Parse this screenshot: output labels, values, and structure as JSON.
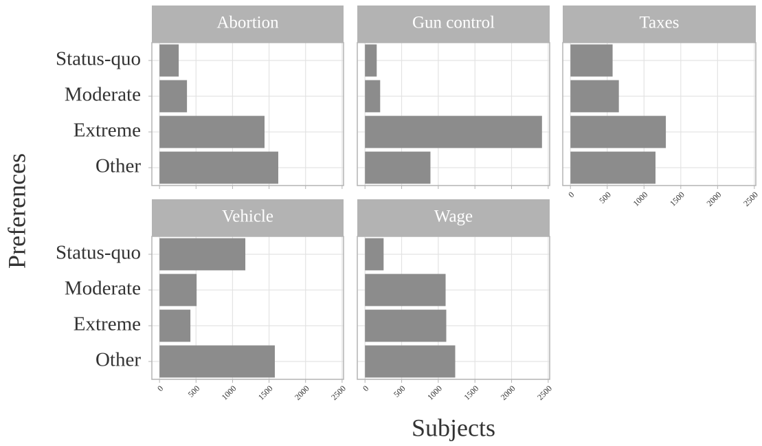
{
  "x_label": "Subjects",
  "y_label": "Preferences",
  "chart_data": [
    {
      "type": "bar",
      "orientation": "horizontal",
      "title": "Abortion",
      "categories": [
        "Status-quo",
        "Moderate",
        "Extreme",
        "Other"
      ],
      "values": [
        263,
        376,
        1438,
        1626
      ],
      "color": "#8c8c8c",
      "xlim": [
        -105,
        2520
      ],
      "xticks": [
        0,
        500,
        1000,
        1500,
        2000,
        2500
      ],
      "grid": true
    },
    {
      "type": "bar",
      "orientation": "horizontal",
      "title": "Gun control",
      "categories": [
        "Status-quo",
        "Moderate",
        "Extreme",
        "Other"
      ],
      "values": [
        160,
        207,
        2415,
        893
      ],
      "color": "#8c8c8c",
      "xlim": [
        -105,
        2520
      ],
      "xticks": [
        0,
        500,
        1000,
        1500,
        2000,
        2500
      ],
      "grid": true
    },
    {
      "type": "bar",
      "orientation": "horizontal",
      "title": "Taxes",
      "categories": [
        "Status-quo",
        "Moderate",
        "Extreme",
        "Other"
      ],
      "values": [
        573,
        658,
        1297,
        1156
      ],
      "color": "#8c8c8c",
      "xlim": [
        -105,
        2520
      ],
      "xticks": [
        0,
        500,
        1000,
        1500,
        2000,
        2500
      ],
      "grid": true
    },
    {
      "type": "bar",
      "orientation": "horizontal",
      "title": "Vehicle",
      "categories": [
        "Status-quo",
        "Moderate",
        "Extreme",
        "Other"
      ],
      "values": [
        1175,
        508,
        423,
        1579
      ],
      "color": "#8c8c8c",
      "xlim": [
        -105,
        2520
      ],
      "xticks": [
        0,
        500,
        1000,
        1500,
        2000,
        2500
      ],
      "grid": true
    },
    {
      "type": "bar",
      "orientation": "horizontal",
      "title": "Wage",
      "categories": [
        "Status-quo",
        "Moderate",
        "Extreme",
        "Other"
      ],
      "values": [
        254,
        1100,
        1109,
        1231
      ],
      "color": "#8c8c8c",
      "xlim": [
        -105,
        2520
      ],
      "xticks": [
        0,
        500,
        1000,
        1500,
        2000,
        2500
      ],
      "grid": true
    }
  ]
}
